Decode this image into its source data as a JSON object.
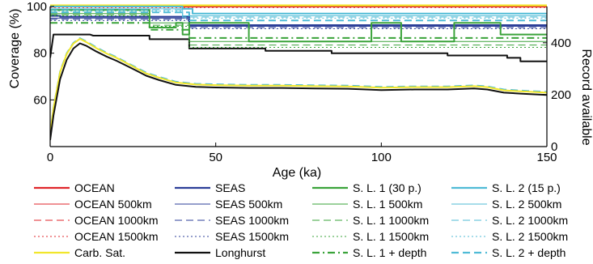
{
  "chart_data": {
    "type": "line",
    "xlabel": "Age (ka)",
    "ylabel_left": "Coverage (%)",
    "ylabel_right": "Record available",
    "xlim": [
      0,
      150
    ],
    "ylim_left": [
      40,
      100
    ],
    "ylim_right": [
      0,
      540
    ],
    "xticks": [
      "0",
      "50",
      "100",
      "150"
    ],
    "yticks_left": [
      "60",
      "80",
      "100"
    ],
    "yticks_right": [
      "0",
      "200",
      "400"
    ],
    "grid": false,
    "legend_position": "bottom",
    "series": [
      {
        "name": "OCEAN",
        "color": "#e0262b",
        "style": "solid",
        "width": 2.2,
        "axis": "left",
        "points": [
          [
            0,
            100
          ],
          [
            150,
            100
          ]
        ]
      },
      {
        "name": "OCEAN 500km",
        "color": "#e0262b",
        "style": "solid",
        "width": 1,
        "axis": "left",
        "points": [
          [
            0,
            100
          ],
          [
            150,
            100
          ]
        ]
      },
      {
        "name": "OCEAN 1000km",
        "color": "#e0262b",
        "style": "dash",
        "width": 1,
        "axis": "left",
        "points": [
          [
            0,
            99.8
          ],
          [
            150,
            99.8
          ]
        ]
      },
      {
        "name": "OCEAN 1500km",
        "color": "#e0262b",
        "style": "dot",
        "width": 1,
        "axis": "left",
        "points": [
          [
            0,
            99.6
          ],
          [
            150,
            99.6
          ]
        ]
      },
      {
        "name": "SEAS",
        "color": "#2c3f98",
        "style": "solid",
        "width": 2.2,
        "axis": "left",
        "points": [
          [
            0,
            96
          ],
          [
            3,
            96
          ],
          [
            3,
            95.6
          ],
          [
            42,
            95.6
          ],
          [
            42,
            92
          ],
          [
            150,
            92
          ]
        ]
      },
      {
        "name": "SEAS 500km",
        "color": "#2c3f98",
        "style": "solid",
        "width": 1,
        "axis": "left",
        "points": [
          [
            0,
            95
          ],
          [
            42,
            95
          ],
          [
            42,
            91.5
          ],
          [
            150,
            91.5
          ]
        ]
      },
      {
        "name": "SEAS 1000km",
        "color": "#2c3f98",
        "style": "dash",
        "width": 1,
        "axis": "left",
        "points": [
          [
            0,
            94.5
          ],
          [
            42,
            94.5
          ],
          [
            42,
            91
          ],
          [
            150,
            91
          ]
        ]
      },
      {
        "name": "SEAS 1500km",
        "color": "#2c3f98",
        "style": "dot",
        "width": 1,
        "axis": "left",
        "points": [
          [
            0,
            94
          ],
          [
            42,
            94
          ],
          [
            42,
            90.5
          ],
          [
            150,
            90.5
          ]
        ]
      },
      {
        "name": "Carb. Sat.",
        "color": "#f1e62b",
        "style": "solid",
        "width": 2.2,
        "axis": "left",
        "points": [
          [
            0,
            100.5
          ],
          [
            150,
            100.5
          ]
        ]
      },
      {
        "name": "Longhurst",
        "color": "#111111",
        "style": "solid",
        "width": 2,
        "axis": "left",
        "points": [
          [
            0,
            78
          ],
          [
            1,
            88
          ],
          [
            12,
            88
          ],
          [
            13,
            87.5
          ],
          [
            30,
            87.5
          ],
          [
            30,
            86
          ],
          [
            42,
            86
          ],
          [
            42,
            82
          ],
          [
            65,
            82
          ],
          [
            65,
            81
          ],
          [
            85,
            81
          ],
          [
            85,
            80
          ],
          [
            120,
            80
          ],
          [
            120,
            79
          ],
          [
            138,
            79
          ],
          [
            138,
            78
          ],
          [
            142,
            78
          ],
          [
            142,
            76.5
          ],
          [
            150,
            76.5
          ]
        ]
      },
      {
        "name": "S. L. 1 (30 p.)",
        "color": "#3aa33a",
        "style": "solid",
        "width": 2,
        "axis": "left",
        "points": [
          [
            0,
            98.5
          ],
          [
            30,
            98.5
          ],
          [
            30,
            91
          ],
          [
            38,
            91
          ],
          [
            38,
            93
          ],
          [
            40,
            93
          ],
          [
            40,
            88
          ],
          [
            42,
            88
          ],
          [
            42,
            93
          ],
          [
            60,
            93
          ],
          [
            60,
            85
          ],
          [
            97,
            85
          ],
          [
            97,
            93
          ],
          [
            98,
            93
          ],
          [
            98,
            93
          ],
          [
            106,
            93
          ],
          [
            106,
            85
          ],
          [
            122,
            85
          ],
          [
            122,
            93
          ],
          [
            136,
            93
          ],
          [
            136,
            88
          ],
          [
            150,
            88
          ]
        ]
      },
      {
        "name": "S. L. 1 500km",
        "color": "#3aa33a",
        "style": "solid",
        "width": 1,
        "axis": "left",
        "points": [
          [
            0,
            97
          ],
          [
            30,
            97
          ],
          [
            30,
            93
          ],
          [
            42,
            93
          ],
          [
            42,
            85
          ],
          [
            150,
            85
          ]
        ]
      },
      {
        "name": "S. L. 1 1000km",
        "color": "#3aa33a",
        "style": "dash",
        "width": 1,
        "axis": "left",
        "points": [
          [
            0,
            96.5
          ],
          [
            30,
            96.5
          ],
          [
            30,
            92
          ],
          [
            42,
            92
          ],
          [
            42,
            83.5
          ],
          [
            150,
            83.5
          ]
        ]
      },
      {
        "name": "S. L. 1 1500km",
        "color": "#3aa33a",
        "style": "dot",
        "width": 1,
        "axis": "left",
        "points": [
          [
            0,
            96
          ],
          [
            30,
            96
          ],
          [
            30,
            91.5
          ],
          [
            42,
            91.5
          ],
          [
            42,
            82.5
          ],
          [
            150,
            82.5
          ]
        ]
      },
      {
        "name": "S. L. 1 + depth",
        "color": "#3aa33a",
        "style": "dashdot",
        "width": 2,
        "axis": "left",
        "points": [
          [
            0,
            93
          ],
          [
            30,
            93
          ],
          [
            30,
            90
          ],
          [
            42,
            90
          ],
          [
            42,
            86.5
          ],
          [
            150,
            86.5
          ]
        ]
      },
      {
        "name": "S. L. 2 (15 p.)",
        "color": "#4fbbd6",
        "style": "solid",
        "width": 2,
        "axis": "left",
        "points": [
          [
            0,
            100
          ],
          [
            40,
            100
          ],
          [
            40,
            99
          ],
          [
            43,
            99
          ],
          [
            43,
            97
          ],
          [
            150,
            97
          ]
        ]
      },
      {
        "name": "S. L. 2  500km",
        "color": "#4fbbd6",
        "style": "solid",
        "width": 1,
        "axis": "left",
        "points": [
          [
            0,
            99
          ],
          [
            40,
            99
          ],
          [
            40,
            96
          ],
          [
            150,
            96
          ]
        ]
      },
      {
        "name": "S. L. 2  1000km",
        "color": "#4fbbd6",
        "style": "dash",
        "width": 1,
        "axis": "left",
        "points": [
          [
            0,
            98.5
          ],
          [
            40,
            98.5
          ],
          [
            40,
            95.5
          ],
          [
            150,
            95.5
          ]
        ]
      },
      {
        "name": "S. L. 2  1500km",
        "color": "#4fbbd6",
        "style": "dot",
        "width": 1,
        "axis": "left",
        "points": [
          [
            0,
            98
          ],
          [
            40,
            98
          ],
          [
            40,
            95
          ],
          [
            150,
            95
          ]
        ]
      },
      {
        "name": "S. L. 2 + depth",
        "color": "#4fbbd6",
        "style": "dash",
        "width": 2,
        "axis": "left",
        "points": [
          [
            0,
            97.5
          ],
          [
            42,
            97.5
          ],
          [
            42,
            94
          ],
          [
            150,
            94
          ]
        ]
      }
    ],
    "record_series": [
      {
        "color": "#4fbbd6",
        "style": "dash",
        "width": 2,
        "points": [
          [
            0,
            50
          ],
          [
            1,
            150
          ],
          [
            3,
            290
          ],
          [
            5,
            360
          ],
          [
            7,
            400
          ],
          [
            9,
            418
          ],
          [
            11,
            405
          ],
          [
            14,
            382
          ],
          [
            17,
            362
          ],
          [
            20,
            345
          ],
          [
            23,
            325
          ],
          [
            26,
            305
          ],
          [
            29,
            285
          ],
          [
            33,
            268
          ],
          [
            38,
            250
          ],
          [
            44,
            242
          ],
          [
            50,
            240
          ],
          [
            60,
            238
          ],
          [
            70,
            238
          ],
          [
            80,
            236
          ],
          [
            90,
            235
          ],
          [
            100,
            230
          ],
          [
            110,
            232
          ],
          [
            120,
            232
          ],
          [
            128,
            236
          ],
          [
            132,
            232
          ],
          [
            137,
            220
          ],
          [
            142,
            216
          ],
          [
            150,
            211
          ]
        ]
      },
      {
        "color": "#f1e62b",
        "style": "solid",
        "width": 2,
        "points": [
          [
            0,
            48
          ],
          [
            1,
            148
          ],
          [
            3,
            287
          ],
          [
            5,
            357
          ],
          [
            7,
            397
          ],
          [
            9,
            415
          ],
          [
            11,
            402
          ],
          [
            14,
            379
          ],
          [
            17,
            359
          ],
          [
            20,
            342
          ],
          [
            23,
            322
          ],
          [
            26,
            302
          ],
          [
            29,
            282
          ],
          [
            33,
            265
          ],
          [
            38,
            247
          ],
          [
            44,
            239
          ],
          [
            50,
            237
          ],
          [
            60,
            235
          ],
          [
            70,
            235
          ],
          [
            80,
            233
          ],
          [
            90,
            232
          ],
          [
            100,
            227
          ],
          [
            110,
            229
          ],
          [
            120,
            229
          ],
          [
            128,
            233
          ],
          [
            132,
            229
          ],
          [
            137,
            217
          ],
          [
            142,
            213
          ],
          [
            150,
            208
          ]
        ]
      },
      {
        "color": "#111111",
        "style": "solid",
        "width": 2,
        "points": [
          [
            0,
            25
          ],
          [
            1,
            120
          ],
          [
            3,
            260
          ],
          [
            5,
            335
          ],
          [
            7,
            378
          ],
          [
            9,
            398
          ],
          [
            11,
            388
          ],
          [
            14,
            366
          ],
          [
            17,
            347
          ],
          [
            20,
            331
          ],
          [
            23,
            312
          ],
          [
            26,
            293
          ],
          [
            29,
            273
          ],
          [
            33,
            256
          ],
          [
            38,
            238
          ],
          [
            44,
            230
          ],
          [
            50,
            228
          ],
          [
            60,
            226
          ],
          [
            70,
            226
          ],
          [
            80,
            224
          ],
          [
            90,
            223
          ],
          [
            100,
            218
          ],
          [
            110,
            220
          ],
          [
            120,
            220
          ],
          [
            128,
            224
          ],
          [
            132,
            220
          ],
          [
            137,
            208
          ],
          [
            142,
            204
          ],
          [
            150,
            199
          ]
        ]
      }
    ]
  },
  "legend": [
    {
      "label": "OCEAN",
      "color": "#e0262b",
      "style": "solid",
      "width": 2.2
    },
    {
      "label": "SEAS",
      "color": "#2c3f98",
      "style": "solid",
      "width": 2.2
    },
    {
      "label": "S. L. 1 (30 p.)",
      "color": "#3aa33a",
      "style": "solid",
      "width": 2.2
    },
    {
      "label": "S. L. 2 (15 p.)",
      "color": "#4fbbd6",
      "style": "solid",
      "width": 2.2
    },
    {
      "label": "OCEAN 500km",
      "color": "#e0262b",
      "style": "solid",
      "width": 1
    },
    {
      "label": "SEAS 500km",
      "color": "#2c3f98",
      "style": "solid",
      "width": 1
    },
    {
      "label": "S. L. 1 500km",
      "color": "#3aa33a",
      "style": "solid",
      "width": 1
    },
    {
      "label": "S. L. 2  500km",
      "color": "#4fbbd6",
      "style": "solid",
      "width": 1
    },
    {
      "label": "OCEAN 1000km",
      "color": "#e0262b",
      "style": "dash",
      "width": 1
    },
    {
      "label": "SEAS 1000km",
      "color": "#2c3f98",
      "style": "dash",
      "width": 1
    },
    {
      "label": "S. L. 1 1000km",
      "color": "#3aa33a",
      "style": "dash",
      "width": 1
    },
    {
      "label": "S. L. 2  1000km",
      "color": "#4fbbd6",
      "style": "dash",
      "width": 1
    },
    {
      "label": "OCEAN 1500km",
      "color": "#e0262b",
      "style": "dot",
      "width": 1
    },
    {
      "label": "SEAS 1500km",
      "color": "#2c3f98",
      "style": "dot",
      "width": 1
    },
    {
      "label": "S. L. 1 1500km",
      "color": "#3aa33a",
      "style": "dot",
      "width": 1
    },
    {
      "label": "S. L. 2  1500km",
      "color": "#4fbbd6",
      "style": "dot",
      "width": 1
    },
    {
      "label": "Carb. Sat.",
      "color": "#f1e62b",
      "style": "solid",
      "width": 2.2
    },
    {
      "label": "Longhurst",
      "color": "#111111",
      "style": "solid",
      "width": 2.2
    },
    {
      "label": "S. L. 1 + depth",
      "color": "#3aa33a",
      "style": "dashdot",
      "width": 2.2
    },
    {
      "label": "S. L. 2 + depth",
      "color": "#4fbbd6",
      "style": "dash",
      "width": 2.2
    }
  ]
}
